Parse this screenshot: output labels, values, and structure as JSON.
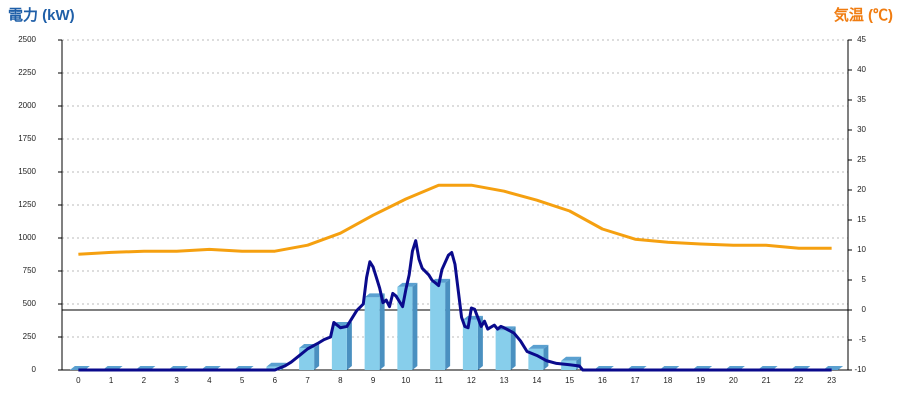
{
  "chart_data": {
    "type": "combo",
    "y_title": "電力 (kW)",
    "y2_title": "気温 (℃)",
    "categories": [
      "0",
      "1",
      "2",
      "3",
      "4",
      "5",
      "6",
      "7",
      "8",
      "9",
      "10",
      "11",
      "12",
      "13",
      "14",
      "15",
      "16",
      "17",
      "18",
      "19",
      "20",
      "21",
      "22",
      "23"
    ],
    "ylim": [
      0,
      2500
    ],
    "yticks": [
      0,
      250,
      500,
      750,
      1000,
      1250,
      1500,
      1750,
      2000,
      2250,
      2500
    ],
    "y2lim": [
      -10,
      45
    ],
    "y2ticks": [
      -10,
      -5,
      0,
      5,
      10,
      15,
      20,
      25,
      30,
      35,
      40,
      45
    ],
    "grid": true,
    "series": [
      {
        "type": "bar",
        "color": "#87ceeb",
        "values": [
          0,
          0,
          0,
          0,
          0,
          0,
          25,
          167,
          333,
          550,
          630,
          660,
          380,
          300,
          160,
          70,
          0,
          0,
          0,
          0,
          0,
          0,
          0,
          0
        ]
      },
      {
        "type": "line",
        "axis": "y2",
        "color": "#f5a010",
        "values": [
          9.3,
          9.6,
          9.8,
          9.8,
          10.1,
          9.8,
          9.8,
          10.8,
          12.8,
          15.8,
          18.5,
          20.8,
          20.8,
          19.8,
          18.3,
          16.5,
          13.5,
          11.8,
          11.3,
          11.0,
          10.8,
          10.8,
          10.3,
          10.3
        ]
      },
      {
        "type": "line",
        "color": "#0a0a8c",
        "x": [
          0,
          6,
          6.3,
          6.5,
          6.8,
          7,
          7.3,
          7.5,
          7.7,
          7.8,
          8,
          8.2,
          8.5,
          8.7,
          8.8,
          8.9,
          9,
          9.1,
          9.2,
          9.3,
          9.4,
          9.5,
          9.6,
          9.7,
          9.8,
          9.9,
          10,
          10.1,
          10.2,
          10.3,
          10.4,
          10.5,
          10.7,
          10.8,
          10.9,
          11,
          11.1,
          11.3,
          11.4,
          11.5,
          11.6,
          11.7,
          11.8,
          11.9,
          12,
          12.1,
          12.3,
          12.4,
          12.5,
          12.7,
          12.8,
          12.9,
          13,
          13.3,
          13.5,
          13.7,
          14,
          14.3,
          14.6,
          15,
          15.3,
          15.4,
          23
        ],
        "values": [
          0,
          0,
          30,
          60,
          120,
          160,
          200,
          230,
          250,
          360,
          320,
          330,
          450,
          500,
          700,
          820,
          780,
          700,
          620,
          510,
          530,
          480,
          580,
          560,
          520,
          480,
          610,
          720,
          900,
          980,
          840,
          770,
          720,
          680,
          660,
          640,
          760,
          870,
          890,
          800,
          600,
          400,
          330,
          320,
          470,
          460,
          330,
          370,
          310,
          340,
          310,
          330,
          320,
          280,
          220,
          140,
          110,
          70,
          50,
          40,
          30,
          0,
          0
        ]
      }
    ]
  }
}
